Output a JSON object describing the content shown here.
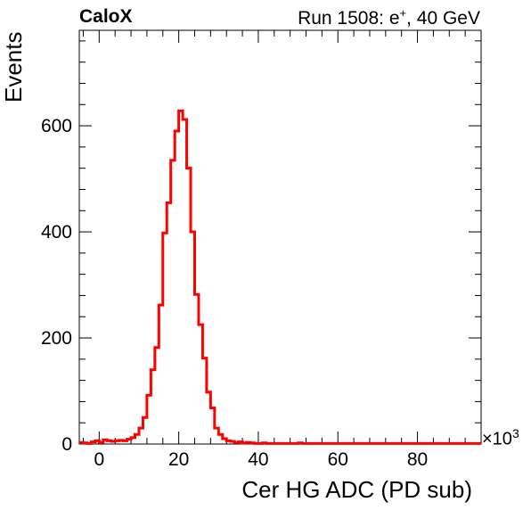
{
  "header": {
    "left_title": "CaloX",
    "right_title_prefix": "Run 1508: e",
    "right_title_sup": "+",
    "right_title_suffix": ", 40 GeV"
  },
  "chart_data": {
    "type": "histogram",
    "xlabel": "Cer HG ADC (PD sub)",
    "ylabel": "Events",
    "x_multiplier_prefix": "×10",
    "x_multiplier_exp": "3",
    "xlim": [
      -5,
      96
    ],
    "ylim": [
      0,
      780
    ],
    "bin_width": 1,
    "xticks": [
      0,
      20,
      40,
      60,
      80
    ],
    "yticks": [
      0,
      200,
      400,
      600
    ],
    "line_color": "#ff0000",
    "bins_x": [
      -5,
      -4,
      -3,
      -2,
      -1,
      0,
      1,
      2,
      3,
      4,
      5,
      6,
      7,
      8,
      9,
      10,
      11,
      12,
      13,
      14,
      15,
      16,
      17,
      18,
      19,
      20,
      21,
      22,
      23,
      24,
      25,
      26,
      27,
      28,
      29,
      30,
      31,
      32,
      33,
      34,
      35,
      36,
      37,
      38,
      39,
      40,
      41,
      42,
      43,
      44,
      45,
      46,
      47,
      48,
      49,
      50,
      51,
      52,
      53,
      54,
      55,
      56,
      57,
      58,
      59,
      60,
      61,
      62,
      63,
      64,
      65,
      66,
      67,
      68,
      69,
      70,
      71,
      72,
      73,
      74,
      75,
      76,
      77,
      78,
      79,
      80,
      81,
      82,
      83,
      84,
      85,
      86,
      87,
      88,
      89,
      90,
      91,
      92,
      93,
      94,
      95
    ],
    "counts": [
      3,
      2,
      1,
      4,
      6,
      3,
      8,
      6,
      5,
      6,
      7,
      6,
      9,
      12,
      18,
      30,
      50,
      92,
      140,
      182,
      262,
      398,
      455,
      535,
      590,
      628,
      612,
      520,
      400,
      282,
      225,
      162,
      98,
      68,
      30,
      18,
      10,
      6,
      5,
      3,
      4,
      2,
      3,
      2,
      1,
      1,
      2,
      1,
      1,
      1,
      1,
      1,
      1,
      1,
      1,
      2,
      1,
      1,
      1,
      1,
      1,
      1,
      1,
      1,
      1,
      1,
      1,
      1,
      1,
      1,
      1,
      1,
      1,
      1,
      1,
      1,
      1,
      1,
      1,
      1,
      1,
      1,
      1,
      1,
      1,
      1,
      1,
      1,
      1,
      1,
      1,
      1,
      1,
      1,
      1,
      1,
      1,
      1,
      1,
      1,
      1
    ]
  }
}
